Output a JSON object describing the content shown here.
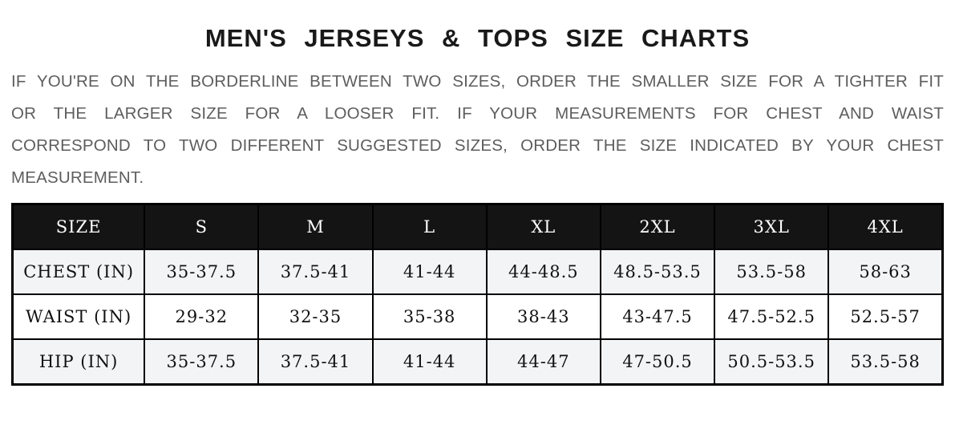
{
  "page": {
    "title": "MEN'S JERSEYS & TOPS SIZE CHARTS",
    "intro": "IF YOU'RE ON THE BORDERLINE BETWEEN TWO SIZES, ORDER THE SMALLER SIZE FOR A TIGHTER FIT OR THE LARGER SIZE FOR A LOOSER FIT. IF YOUR MEASUREMENTS FOR CHEST AND WAIST CORRESPOND TO TWO DIFFERENT SUGGESTED SIZES, ORDER THE SIZE INDICATED BY YOUR CHEST MEASUREMENT."
  },
  "size_chart": {
    "columns": [
      "SIZE",
      "S",
      "M",
      "L",
      "XL",
      "2XL",
      "3XL",
      "4XL"
    ],
    "rows": [
      {
        "label": "CHEST (IN)",
        "values": [
          "35-37.5",
          "37.5-41",
          "41-44",
          "44-48.5",
          "48.5-53.5",
          "53.5-58",
          "58-63"
        ]
      },
      {
        "label": "WAIST (IN)",
        "values": [
          "29-32",
          "32-35",
          "35-38",
          "38-43",
          "43-47.5",
          "47.5-52.5",
          "52.5-57"
        ]
      },
      {
        "label": "HIP (IN)",
        "values": [
          "35-37.5",
          "37.5-41",
          "41-44",
          "44-47",
          "47-50.5",
          "50.5-53.5",
          "53.5-58"
        ]
      }
    ],
    "colors": {
      "header_bg": "#141414",
      "header_text": "#ffffff",
      "row_alt_bg": "#f3f4f6",
      "row_plain_bg": "#ffffff",
      "border": "#000000",
      "intro_text": "#5d5d5d",
      "title_text": "#191919"
    }
  }
}
